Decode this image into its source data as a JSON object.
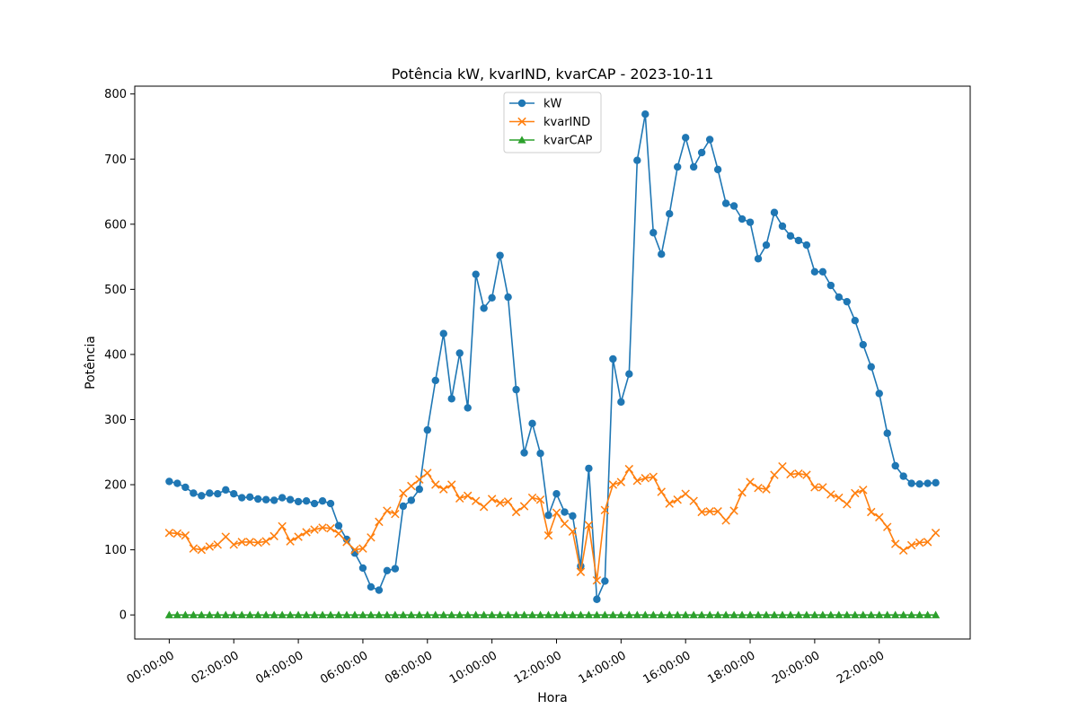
{
  "chart_data": {
    "type": "line",
    "title": "Potência kW, kvarIND, kvarCAP - 2023-10-11",
    "xlabel": "Hora",
    "ylabel": "Potência",
    "x_interval_minutes": 15,
    "x_tick_labels": [
      "00:00:00",
      "02:00:00",
      "04:00:00",
      "06:00:00",
      "08:00:00",
      "10:00:00",
      "12:00:00",
      "14:00:00",
      "16:00:00",
      "18:00:00",
      "20:00:00",
      "22:00:00"
    ],
    "y_ticks": [
      0,
      100,
      200,
      300,
      400,
      500,
      600,
      700,
      800
    ],
    "ylim": [
      -37,
      812
    ],
    "grid": false,
    "legend_position": "upper center",
    "series": [
      {
        "name": "kW",
        "color": "#1f77b4",
        "marker": "circle",
        "values": [
          205,
          202,
          196,
          187,
          183,
          187,
          186,
          192,
          186,
          180,
          181,
          178,
          177,
          176,
          180,
          177,
          174,
          175,
          171,
          175,
          171,
          137,
          116,
          95,
          72,
          43,
          38,
          68,
          71,
          167,
          176,
          193,
          284,
          360,
          432,
          332,
          402,
          318,
          523,
          471,
          487,
          552,
          488,
          346,
          249,
          294,
          248,
          153,
          186,
          158,
          152,
          75,
          225,
          24,
          52,
          393,
          327,
          370,
          698,
          769,
          587,
          554,
          616,
          688,
          733,
          688,
          710,
          730,
          684,
          632,
          628,
          608,
          603,
          547,
          568,
          618,
          597,
          582,
          575,
          568,
          527,
          527,
          506,
          488,
          481,
          452,
          415,
          381,
          340,
          279,
          229,
          213,
          202,
          201,
          202,
          203
        ]
      },
      {
        "name": "kvarIND",
        "color": "#ff7f0e",
        "marker": "x",
        "values": [
          126,
          125,
          122,
          102,
          100,
          105,
          108,
          120,
          108,
          112,
          112,
          111,
          113,
          121,
          136,
          113,
          120,
          127,
          131,
          134,
          133,
          125,
          112,
          100,
          102,
          119,
          143,
          160,
          155,
          187,
          198,
          208,
          218,
          200,
          193,
          200,
          179,
          183,
          175,
          166,
          178,
          172,
          174,
          158,
          167,
          180,
          177,
          122,
          157,
          140,
          128,
          66,
          138,
          53,
          161,
          200,
          204,
          224,
          206,
          210,
          212,
          189,
          171,
          177,
          186,
          175,
          158,
          159,
          159,
          145,
          160,
          188,
          204,
          195,
          193,
          215,
          228,
          216,
          217,
          215,
          196,
          196,
          185,
          180,
          170,
          187,
          192,
          158,
          150,
          135,
          109,
          99,
          107,
          111,
          112,
          126
        ]
      },
      {
        "name": "kvarCAP",
        "color": "#2ca02c",
        "marker": "triangle",
        "values": [
          0,
          0,
          0,
          0,
          0,
          0,
          0,
          0,
          0,
          0,
          0,
          0,
          0,
          0,
          0,
          0,
          0,
          0,
          0,
          0,
          0,
          0,
          0,
          0,
          0,
          0,
          0,
          0,
          0,
          0,
          0,
          0,
          0,
          0,
          0,
          0,
          0,
          0,
          0,
          0,
          0,
          0,
          0,
          0,
          0,
          0,
          0,
          0,
          0,
          0,
          0,
          0,
          0,
          0,
          0,
          0,
          0,
          0,
          0,
          0,
          0,
          0,
          0,
          0,
          0,
          0,
          0,
          0,
          0,
          0,
          0,
          0,
          0,
          0,
          0,
          0,
          0,
          0,
          0,
          0,
          0,
          0,
          0,
          0,
          0,
          0,
          0,
          0,
          0,
          0,
          0,
          0,
          0,
          0,
          0,
          0
        ]
      }
    ]
  }
}
